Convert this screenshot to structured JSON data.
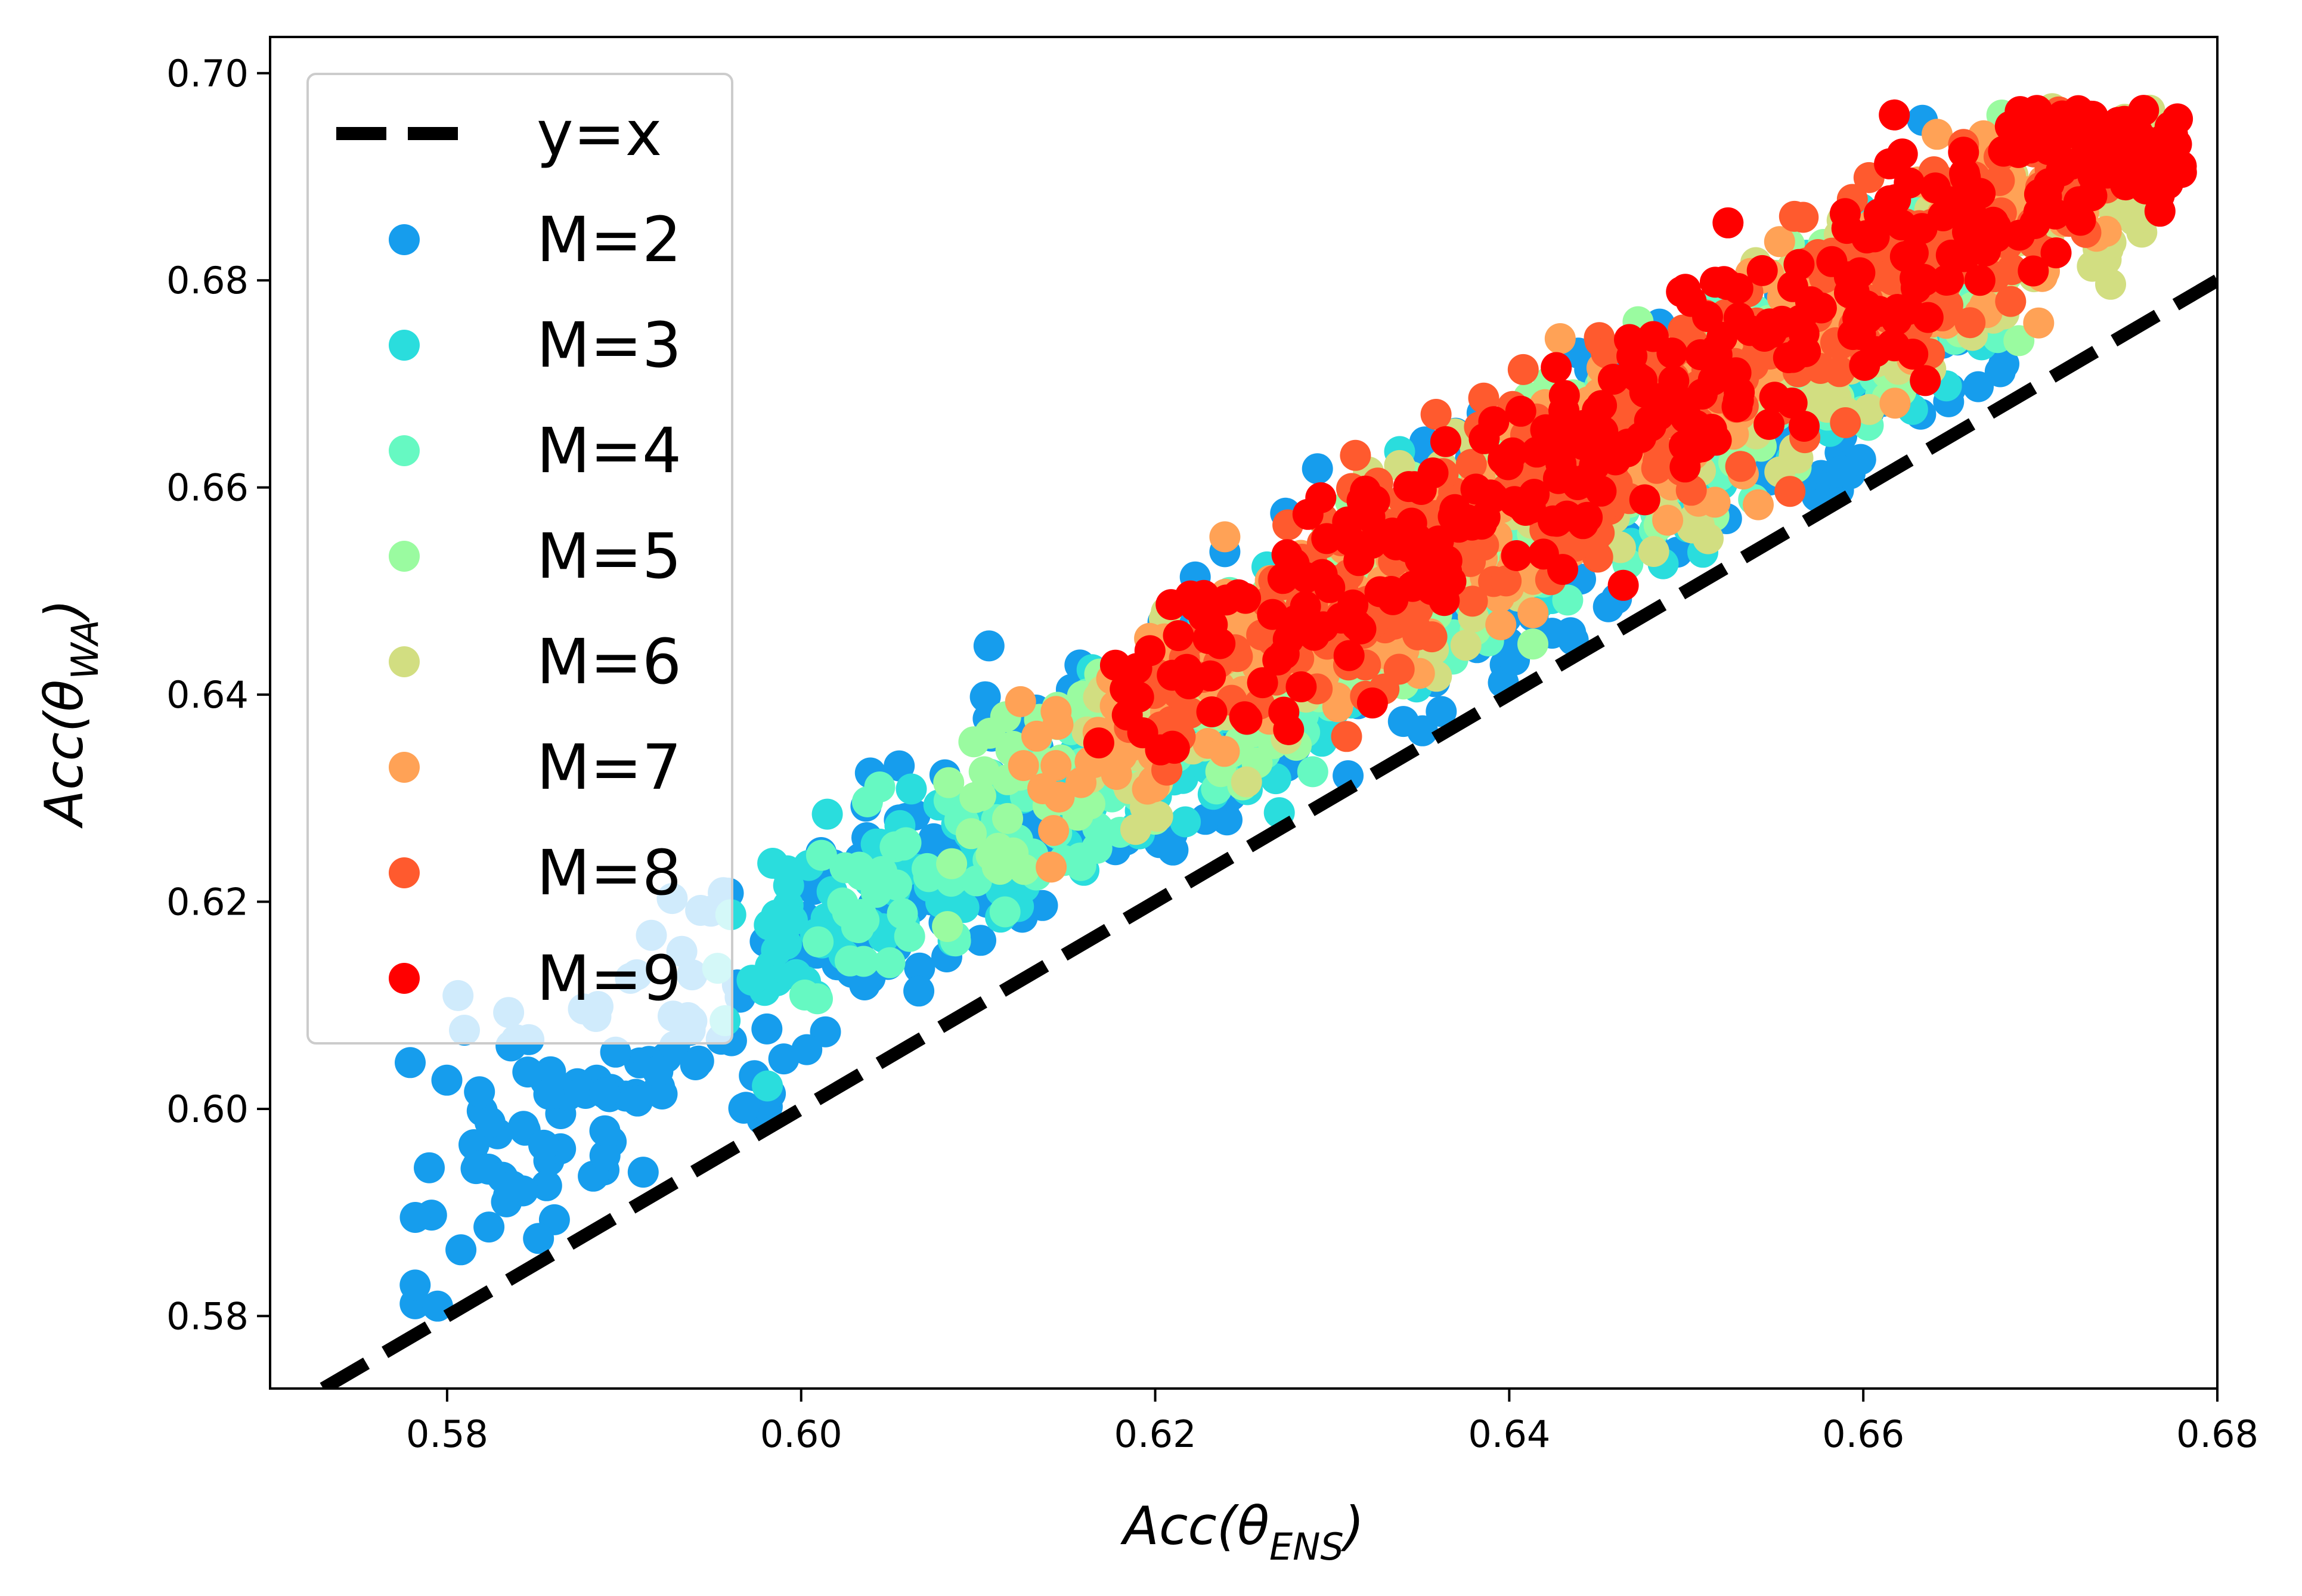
{
  "chart_data": {
    "type": "scatter",
    "title": "",
    "xlabel": "Acc(θ_ENS)",
    "ylabel": "Acc(θ_WA)",
    "xlabel_main": "Acc(θ",
    "xlabel_sub": "ENS",
    "ylabel_main": "Acc(θ",
    "ylabel_sub": "WA",
    "label_close": ")",
    "xlim": [
      0.57,
      0.68
    ],
    "ylim": [
      0.573,
      0.7035
    ],
    "xticks": [
      "0.58",
      "0.60",
      "0.62",
      "0.64",
      "0.66",
      "0.68"
    ],
    "yticks": [
      "0.58",
      "0.60",
      "0.62",
      "0.64",
      "0.66",
      "0.68",
      "0.70"
    ],
    "grid": false,
    "legend_position": "top-left",
    "reference_line": {
      "label": "y=x",
      "style": "dashed",
      "color": "#000000"
    },
    "series": [
      {
        "name": "M=2",
        "color": "#169ded",
        "n_points": 600,
        "x_range": [
          0.577,
          0.668
        ],
        "y_offset_mean": 0.015,
        "y_offset_spread": 0.013
      },
      {
        "name": "M=3",
        "color": "#2adddd",
        "n_points": 420,
        "x_range": [
          0.595,
          0.668
        ],
        "y_offset_mean": 0.016,
        "y_offset_spread": 0.01
      },
      {
        "name": "M=4",
        "color": "#66f9c2",
        "n_points": 360,
        "x_range": [
          0.6,
          0.668
        ],
        "y_offset_mean": 0.016,
        "y_offset_spread": 0.01
      },
      {
        "name": "M=5",
        "color": "#9afba0",
        "n_points": 340,
        "x_range": [
          0.608,
          0.67
        ],
        "y_offset_mean": 0.017,
        "y_offset_spread": 0.01
      },
      {
        "name": "M=6",
        "color": "#d2de81",
        "n_points": 340,
        "x_range": [
          0.616,
          0.677
        ],
        "y_offset_mean": 0.017,
        "y_offset_spread": 0.01
      },
      {
        "name": "M=7",
        "color": "#ffa256",
        "n_points": 340,
        "x_range": [
          0.612,
          0.674
        ],
        "y_offset_mean": 0.018,
        "y_offset_spread": 0.01
      },
      {
        "name": "M=8",
        "color": "#ff5a2e",
        "n_points": 340,
        "x_range": [
          0.618,
          0.674
        ],
        "y_offset_mean": 0.019,
        "y_offset_spread": 0.01
      },
      {
        "name": "M=9",
        "color": "#ff0000",
        "n_points": 360,
        "x_range": [
          0.616,
          0.678
        ],
        "y_offset_mean": 0.02,
        "y_offset_spread": 0.01
      }
    ]
  }
}
